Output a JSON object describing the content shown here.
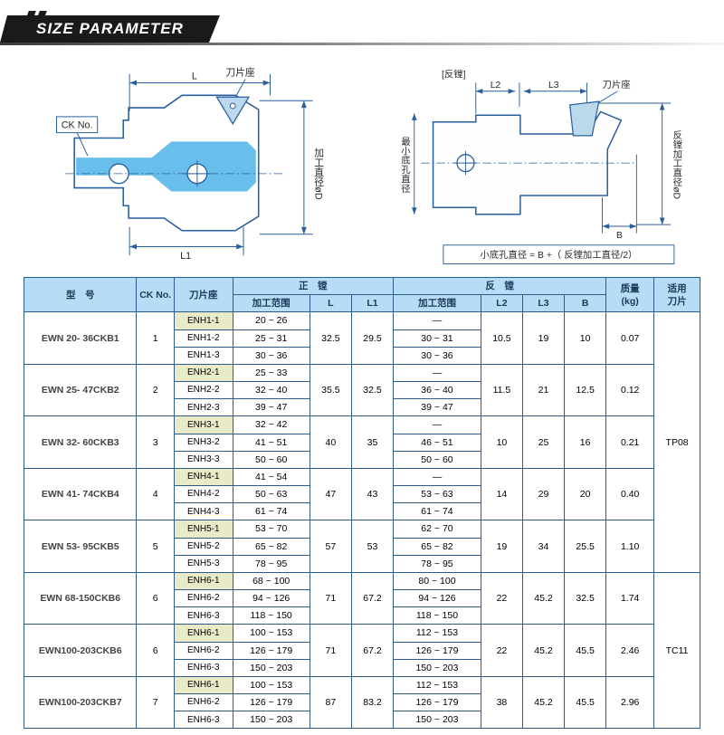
{
  "title": "SIZE PARAMETER",
  "diagram_left": {
    "label_seat": "刀片座",
    "label_L": "L",
    "label_L1": "L1",
    "label_D": "加工直径øD",
    "label_CK": "CK No."
  },
  "diagram_right": {
    "title": "[反镗]",
    "label_seat": "刀片座",
    "label_L2": "L2",
    "label_L3": "L3",
    "label_B": "B",
    "label_minbore": "最小底孔直径",
    "label_D": "反镗加工直径øD",
    "formula": "小底孔直径 = B +（ 反镗加工直径/2）"
  },
  "headers": {
    "model": "型　号",
    "ck": "CK No.",
    "seat": "刀片座",
    "fwd": "正　镗",
    "rev": "反　镗",
    "range1": "加工范围",
    "L": "L",
    "L1": "L1",
    "range2": "加工范围",
    "L2": "L2",
    "L3": "L3",
    "B": "B",
    "weight": "质量\n(kg)",
    "tip": "适用\n刀片"
  },
  "groups": [
    {
      "model": "EWN 20- 36CKB1",
      "ck": "1",
      "L": "32.5",
      "L1": "29.5",
      "L2": "10.5",
      "L3": "19",
      "B": "10",
      "wt": "0.07",
      "tip": "TP08",
      "tipspan": 5,
      "rows": [
        {
          "seat": "ENH1-1",
          "r1": "20 ~  26",
          "r2": "—",
          "hl": true
        },
        {
          "seat": "ENH1-2",
          "r1": "25 ~  31",
          "r2": "30 ~  31"
        },
        {
          "seat": "ENH1-3",
          "r1": "30 ~  36",
          "r2": "30 ~  36"
        }
      ]
    },
    {
      "model": "EWN 25- 47CKB2",
      "ck": "2",
      "L": "35.5",
      "L1": "32.5",
      "L2": "11.5",
      "L3": "21",
      "B": "12.5",
      "wt": "0.12",
      "rows": [
        {
          "seat": "ENH2-1",
          "r1": "25 ~  33",
          "r2": "—",
          "hl": true
        },
        {
          "seat": "ENH2-2",
          "r1": "32 ~  40",
          "r2": "36 ~  40"
        },
        {
          "seat": "ENH2-3",
          "r1": "39 ~  47",
          "r2": "39 ~  47"
        }
      ]
    },
    {
      "model": "EWN 32- 60CKB3",
      "ck": "3",
      "L": "40",
      "L1": "35",
      "L2": "10",
      "L3": "25",
      "B": "16",
      "wt": "0.21",
      "rows": [
        {
          "seat": "ENH3-1",
          "r1": "32 ~  42",
          "r2": "—",
          "hl": true
        },
        {
          "seat": "ENH3-2",
          "r1": "41 ~  51",
          "r2": "46 ~  51"
        },
        {
          "seat": "ENH3-3",
          "r1": "50 ~  60",
          "r2": "50 ~  60"
        }
      ]
    },
    {
      "model": "EWN 41- 74CKB4",
      "ck": "4",
      "L": "47",
      "L1": "43",
      "L2": "14",
      "L3": "29",
      "B": "20",
      "wt": "0.40",
      "rows": [
        {
          "seat": "ENH4-1",
          "r1": "41 ~  54",
          "r2": "—",
          "hl": true
        },
        {
          "seat": "ENH4-2",
          "r1": "50 ~  63",
          "r2": "53 ~  63"
        },
        {
          "seat": "ENH4-3",
          "r1": "61 ~  74",
          "r2": "61 ~  74"
        }
      ]
    },
    {
      "model": "EWN 53- 95CKB5",
      "ck": "5",
      "L": "57",
      "L1": "53",
      "L2": "19",
      "L3": "34",
      "B": "25.5",
      "wt": "1.10",
      "rows": [
        {
          "seat": "ENH5-1",
          "r1": "53 ~  70",
          "r2": "62 ~  70",
          "hl": true
        },
        {
          "seat": "ENH5-2",
          "r1": "65 ~  82",
          "r2": "65 ~  82"
        },
        {
          "seat": "ENH5-3",
          "r1": "78 ~  95",
          "r2": "78 ~  95"
        }
      ]
    },
    {
      "model": "EWN 68-150CKB6",
      "ck": "6",
      "L": "71",
      "L1": "67.2",
      "L2": "22",
      "L3": "45.2",
      "B": "32.5",
      "wt": "1.74",
      "tip": "TC11",
      "tipspan": 3,
      "rows": [
        {
          "seat": "ENH6-1",
          "r1": "68 ~ 100",
          "r2": "80 ~ 100",
          "hl": true
        },
        {
          "seat": "ENH6-2",
          "r1": "94 ~ 126",
          "r2": "94 ~ 126"
        },
        {
          "seat": "ENH6-3",
          "r1": "118 ~ 150",
          "r2": "118 ~ 150"
        }
      ]
    },
    {
      "model": "EWN100-203CKB6",
      "ck": "6",
      "L": "71",
      "L1": "67.2",
      "L2": "22",
      "L3": "45.2",
      "B": "45.5",
      "wt": "2.46",
      "rows": [
        {
          "seat": "ENH6-1",
          "r1": "100 ~ 153",
          "r2": "112 ~ 153",
          "hl": true
        },
        {
          "seat": "ENH6-2",
          "r1": "126 ~ 179",
          "r2": "126 ~ 179"
        },
        {
          "seat": "ENH6-3",
          "r1": "150 ~ 203",
          "r2": "150 ~ 203"
        }
      ]
    },
    {
      "model": "EWN100-203CKB7",
      "ck": "7",
      "L": "87",
      "L1": "83.2",
      "L2": "38",
      "L3": "45.2",
      "B": "45.5",
      "wt": "2.96",
      "rows": [
        {
          "seat": "ENH6-1",
          "r1": "100 ~ 153",
          "r2": "112 ~ 153",
          "hl": true
        },
        {
          "seat": "ENH6-2",
          "r1": "126 ~ 179",
          "r2": "126 ~ 179"
        },
        {
          "seat": "ENH6-3",
          "r1": "150 ~ 203",
          "r2": "150 ~ 203"
        }
      ]
    }
  ],
  "colors": {
    "header_bg": "#b7dcf5",
    "border": "#2b5c8a",
    "hl_row": "#e8eac8",
    "diagram_line": "#2a5f9e",
    "diagram_fill": "#4fb4e8"
  }
}
